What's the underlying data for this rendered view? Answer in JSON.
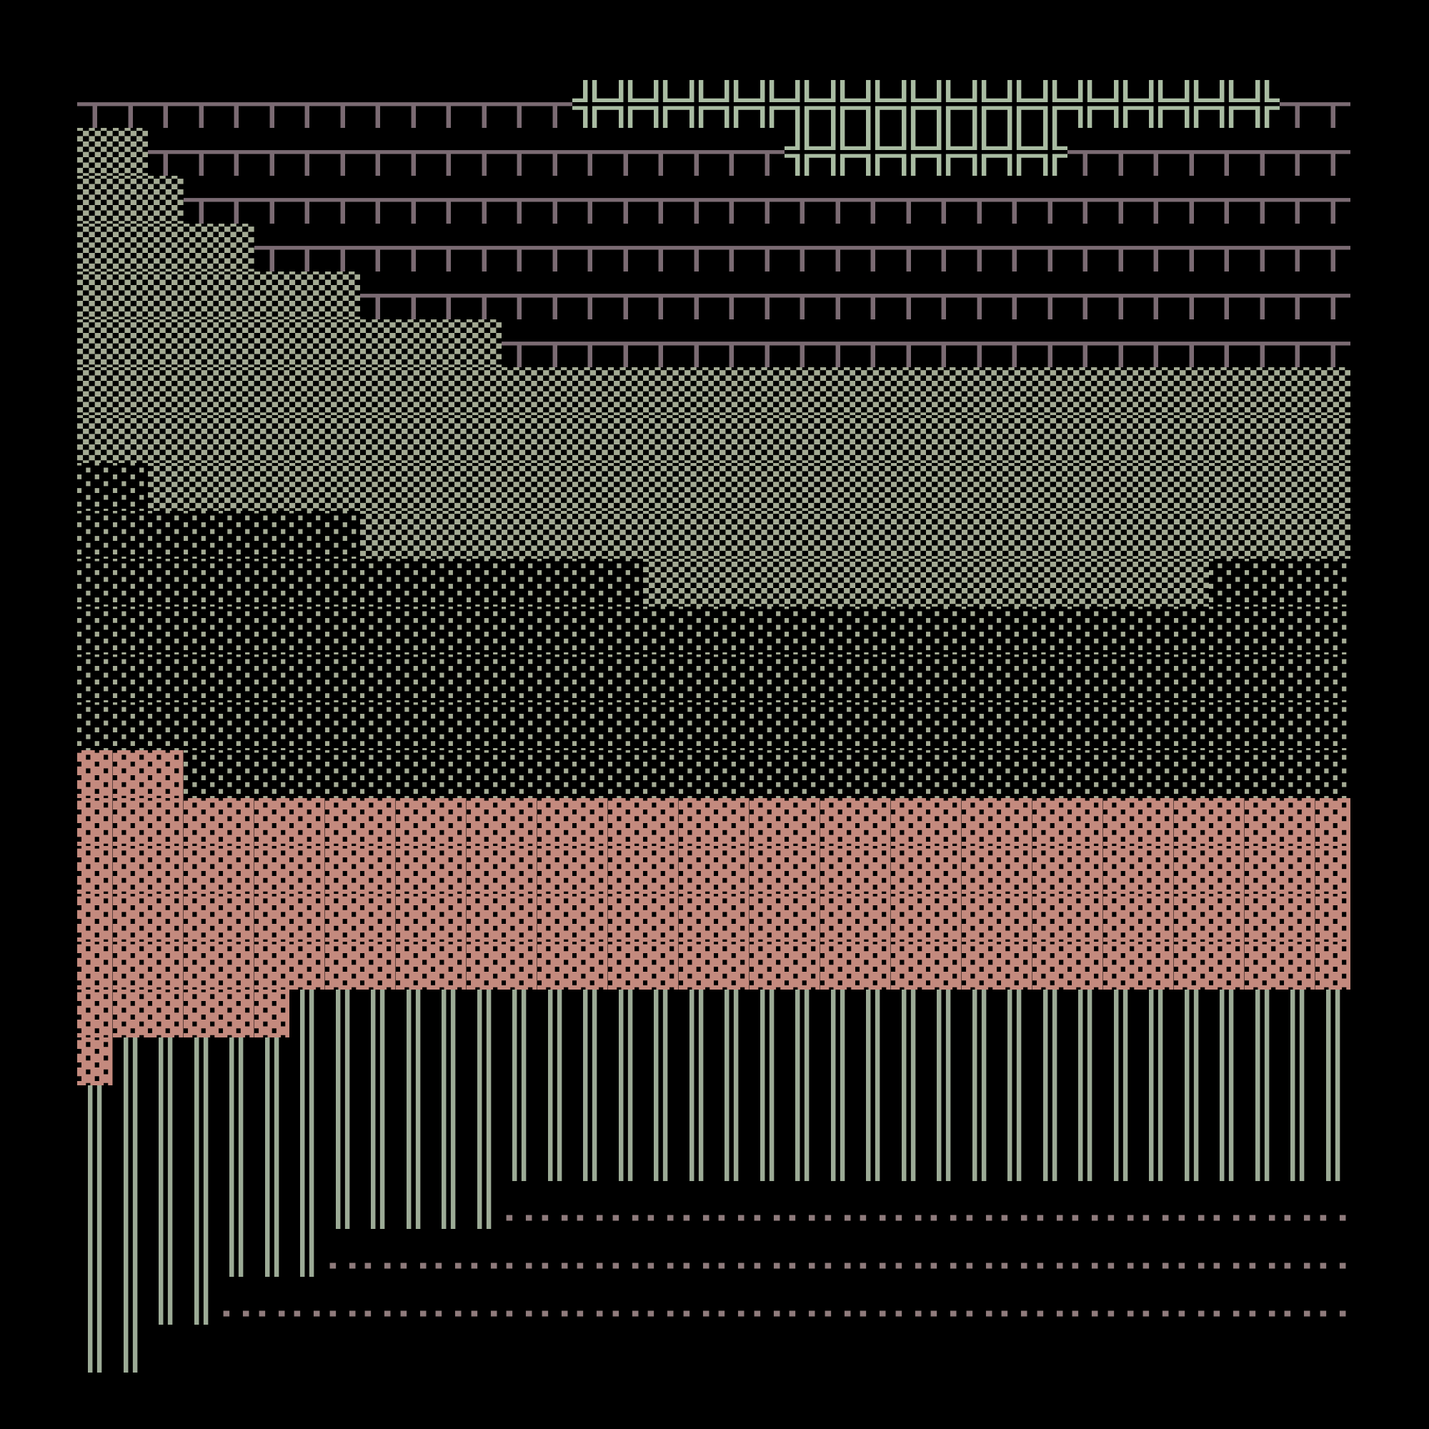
{
  "rows": [
    [
      {
        "text": "┬┬┬┬┬┬┬┬┬┬┬┬┬┬",
        "color": "#7b6b73"
      },
      {
        "text": "╬╬╬╬╬╬╬╬╬╬╬╬╬╬╬╬╬╬╬╬",
        "color": "#a9bca2"
      },
      {
        "text": "┬┬",
        "color": "#7b6b73"
      }
    ],
    [
      {
        "text": "▒▒",
        "color": "#a3aa93"
      },
      {
        "text": "┬┬┬┬┬┬┬┬┬┬┬┬┬┬┬┬┬┬",
        "color": "#7b6b73"
      },
      {
        "text": "╬╬╬╬╬╬╬╬",
        "color": "#a9bca2"
      },
      {
        "text": "┬┬┬┬┬┬┬┬",
        "color": "#7b6b73"
      }
    ],
    [
      {
        "text": "▒▒▒",
        "color": "#a3aa93"
      },
      {
        "text": "┬┬┬┬┬┬┬┬┬┬┬┬┬┬┬┬┬┬┬┬┬┬┬┬┬┬┬┬┬┬┬┬┬",
        "color": "#7b6b73"
      }
    ],
    [
      {
        "text": "▒▒▒▒▒",
        "color": "#a3aa93"
      },
      {
        "text": "┬┬┬┬┬┬┬┬┬┬┬┬┬┬┬┬┬┬┬┬┬┬┬┬┬┬┬┬┬┬┬",
        "color": "#7b6b73"
      }
    ],
    [
      {
        "text": "▒▒▒▒▒▒▒▒",
        "color": "#a3aa93"
      },
      {
        "text": "┬┬┬┬┬┬┬┬┬┬┬┬┬┬┬┬┬┬┬┬┬┬┬┬┬┬┬┬",
        "color": "#7b6b73"
      }
    ],
    [
      {
        "text": "▒▒▒▒▒▒▒▒▒▒▒▒",
        "color": "#a3aa93"
      },
      {
        "text": "┬┬┬┬┬┬┬┬┬┬┬┬┬┬┬┬┬┬┬┬┬┬┬┬",
        "color": "#7b6b73"
      }
    ],
    [
      {
        "text": "▒▒▒▒▒▒▒▒▒▒▒▒▒▒▒▒▒▒▒▒▒▒▒▒▒▒▒▒▒▒▒▒▒▒▒▒",
        "color": "#a3aa93"
      }
    ],
    [
      {
        "text": "▒▒▒▒▒▒▒▒▒▒▒▒▒▒▒▒▒▒▒▒▒▒▒▒▒▒▒▒▒▒▒▒▒▒▒▒",
        "color": "#a3aa93"
      }
    ],
    [
      {
        "text": "░░",
        "color": "#a3aa93"
      },
      {
        "text": "▒▒▒▒▒▒▒▒▒▒▒▒▒▒▒▒▒▒▒▒▒▒▒▒▒▒▒▒▒▒▒▒▒▒",
        "color": "#a3aa93"
      }
    ],
    [
      {
        "text": "░░░░░░░░",
        "color": "#a3aa93"
      },
      {
        "text": "▒▒▒▒▒▒▒▒▒▒▒▒▒▒▒▒▒▒▒▒▒▒▒▒▒▒▒▒",
        "color": "#a3aa93"
      }
    ],
    [
      {
        "text": "░░░░░░░░░░░░░░░░",
        "color": "#a3aa93"
      },
      {
        "text": "▒▒▒▒▒▒▒▒▒▒▒▒▒▒▒▒",
        "color": "#a3aa93"
      },
      {
        "text": "░░░░",
        "color": "#a3aa93"
      }
    ],
    [
      {
        "text": "░░░░░░░░░░░░░░░░░░░░░░░░░░░░░░░░░░░░",
        "color": "#a3aa93"
      }
    ],
    [
      {
        "text": "░░░░░░░░░░░░░░░░░░░░░░░░░░░░░░░░░░░░",
        "color": "#a3aa93"
      }
    ],
    [
      {
        "text": "░░░░░░░░░░░░░░░░░░░░░░░░░░░░░░░░░░░░",
        "color": "#a3aa93"
      }
    ],
    [
      {
        "text": "▓▓▓",
        "color": "#c48a7e"
      },
      {
        "text": "░░░░░░░░░░░░░░░░░░░░░░░░░░░░░░░░░",
        "color": "#a3aa93"
      }
    ],
    [
      {
        "text": "▓▓▓▓▓▓▓▓▓▓▓▓▓▓▓▓▓▓▓▓▓▓▓▓▓▓▓▓▓▓▓▓▓▓▓▓",
        "color": "#c48a7e"
      }
    ],
    [
      {
        "text": "▓▓▓▓▓▓▓▓▓▓▓▓▓▓▓▓▓▓▓▓▓▓▓▓▓▓▓▓▓▓▓▓▓▓▓▓",
        "color": "#c48a7e"
      }
    ],
    [
      {
        "text": "▓▓▓▓▓▓▓▓▓▓▓▓▓▓▓▓▓▓▓▓▓▓▓▓▓▓▓▓▓▓▓▓▓▓▓▓",
        "color": "#c48a7e"
      }
    ],
    [
      {
        "text": "▓▓▓▓▓▓▓▓▓▓▓▓▓▓▓▓▓▓▓▓▓▓▓▓▓▓▓▓▓▓▓▓▓▓▓▓",
        "color": "#c48a7e"
      }
    ],
    [
      {
        "text": "▓▓▓▓▓▓",
        "color": "#c48a7e"
      },
      {
        "text": "║║║║║║║║║║║║║║║║║║║║║║║║║║║║║║",
        "color": "#9cab96"
      }
    ],
    [
      {
        "text": "▓",
        "color": "#c48a7e"
      },
      {
        "text": "║║║║║║║║║║║║║║║║║║║║║║║║║║║║║║║║║║║",
        "color": "#9cab96"
      }
    ],
    [
      {
        "text": "║║║║║║║║║║║║║║║║║║║║║║║║║║║║║║║║║║║║",
        "color": "#9cab96"
      }
    ],
    [
      {
        "text": "║║║║║║║║║║║║║║║║║║║║║║║║║║║║║║║║║║║║",
        "color": "#9cab96"
      }
    ],
    [
      {
        "text": "║║║║║║║║║║║║",
        "color": "#9cab96"
      },
      {
        "text": "‥‥‥‥‥‥‥‥‥‥‥‥‥‥‥‥‥‥‥‥‥‥‥‥",
        "color": "#8f7b7c"
      }
    ],
    [
      {
        "text": "║║║║║║║",
        "color": "#9cab96"
      },
      {
        "text": "‥‥‥‥‥‥‥‥‥‥‥‥‥‥‥‥‥‥‥‥‥‥‥‥‥‥‥‥‥",
        "color": "#8f7b7c"
      }
    ],
    [
      {
        "text": "║║║║",
        "color": "#9cab96"
      },
      {
        "text": "‥‥‥‥‥‥‥‥‥‥‥‥‥‥‥‥‥‥‥‥‥‥‥‥‥‥‥‥‥‥‥‥",
        "color": "#8f7b7c"
      }
    ],
    [
      {
        "text": "║║",
        "color": "#9cab96"
      }
    ]
  ]
}
